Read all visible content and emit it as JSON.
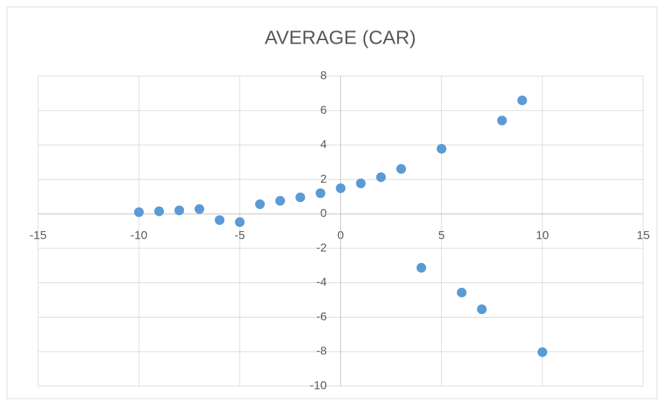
{
  "chart_data": {
    "type": "scatter",
    "title": "AVERAGE (CAR)",
    "color": "#5b9bd5",
    "x": [
      -10,
      -9,
      -8,
      -7,
      -6,
      -5,
      -4,
      -3,
      -2,
      -1,
      0,
      1,
      2,
      3,
      4,
      5,
      6,
      7,
      8,
      9,
      10
    ],
    "values": [
      0.1,
      0.15,
      0.2,
      0.28,
      -0.36,
      -0.48,
      0.56,
      0.76,
      0.96,
      1.2,
      1.49,
      1.77,
      2.13,
      2.61,
      -3.13,
      3.78,
      -4.57,
      -5.54,
      5.42,
      6.59,
      -8.03
    ],
    "xlim": [
      -15,
      15
    ],
    "xticks": [
      -15,
      -10,
      -5,
      0,
      5,
      10,
      15
    ],
    "ylim": [
      -10,
      8
    ],
    "yticks": [
      -10,
      -8,
      -6,
      -4,
      -2,
      0,
      2,
      4,
      6,
      8
    ],
    "grid": true
  }
}
